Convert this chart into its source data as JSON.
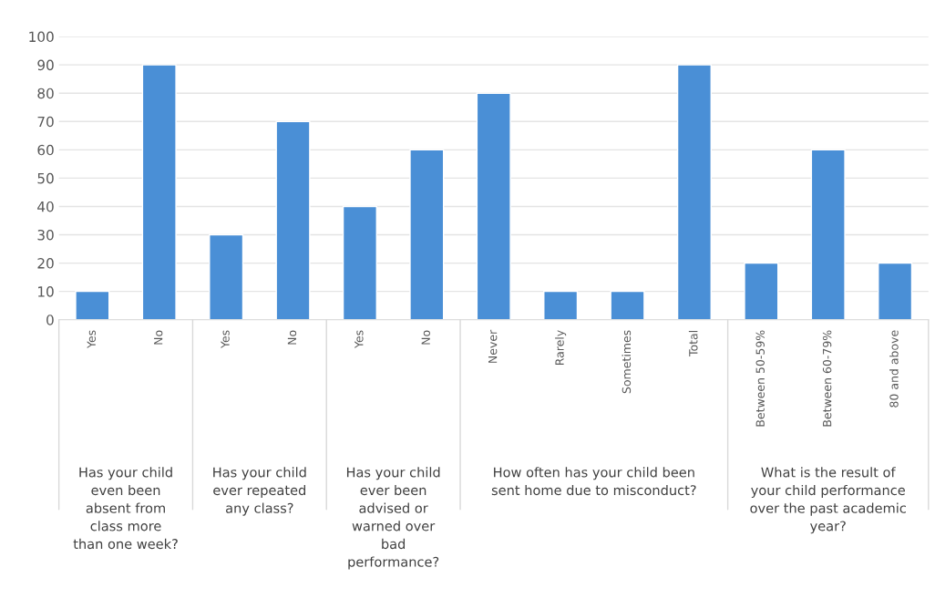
{
  "chart_data": {
    "type": "bar",
    "categories": [
      "Yes",
      "No",
      "Yes",
      "No",
      "Yes",
      "No",
      "Never",
      "Rarely",
      "Sometimes",
      "Total",
      "Between 50-59%",
      "Between 60-79%",
      "80 and above"
    ],
    "values": [
      10,
      90,
      30,
      70,
      40,
      60,
      80,
      10,
      10,
      90,
      20,
      60,
      20
    ],
    "color": "#4a8fd6",
    "ylim": [
      0,
      100
    ],
    "yticks": [
      0,
      10,
      20,
      30,
      40,
      50,
      60,
      70,
      80,
      90,
      100
    ],
    "grid": "y",
    "legend": false,
    "annotations": [
      "Has your child even been absent from class more than one week?",
      "Has your child ever repeated any class?",
      "Has your child ever been advised or warned over bad performance?",
      "How often has your child been sent home due to misconduct?",
      "What is the result of your child performance over the past academic year?"
    ]
  }
}
